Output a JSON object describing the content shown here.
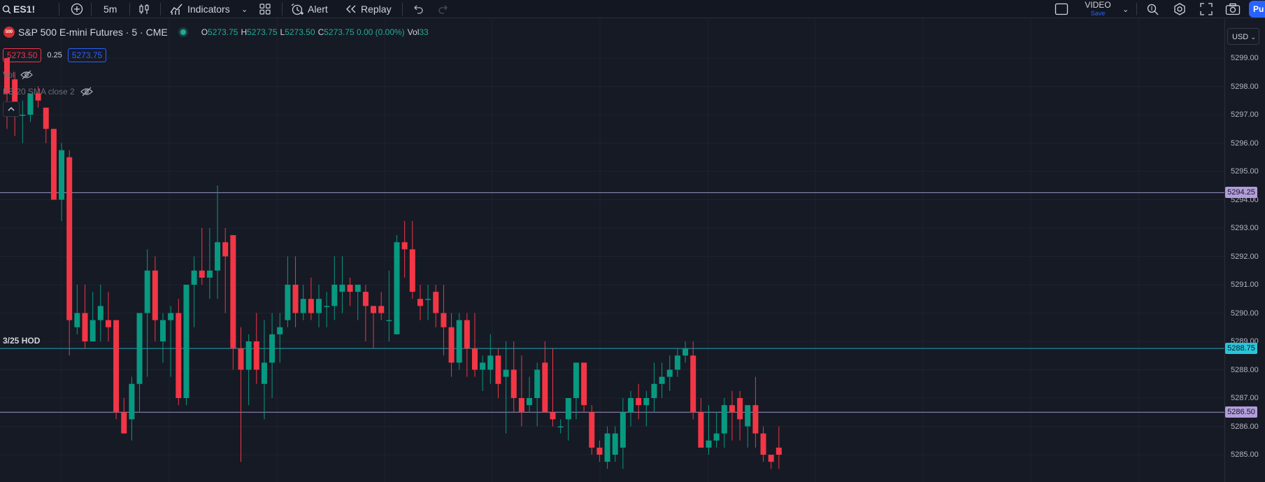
{
  "toolbar": {
    "symbol": "ES1!",
    "interval": "5m",
    "indicators_label": "Indicators",
    "alert_label": "Alert",
    "replay_label": "Replay",
    "video_label": "VIDEO",
    "video_sub": "Save",
    "publish_label": "Pu"
  },
  "legend": {
    "logo_text": "500",
    "title": "S&P 500 E-mini Futures · 5 · CME",
    "ohlc": [
      {
        "k": "O",
        "v": "5273.75"
      },
      {
        "k": "H",
        "v": "5273.75"
      },
      {
        "k": "L",
        "v": "5273.50"
      },
      {
        "k": "C",
        "v": "5273.75 0.00 (0.00%)"
      },
      {
        "k": "Vol",
        "v": "33"
      }
    ],
    "bid": "5273.50",
    "spread": "0.25",
    "ask": "5273.75",
    "indicators": [
      "Vol",
      "BB 20 SMA close 2"
    ]
  },
  "price_axis": {
    "currency": "USD",
    "ticks": [
      "5299.00",
      "5298.00",
      "5297.00",
      "5296.00",
      "5295.00",
      "5294.00",
      "5293.00",
      "5292.00",
      "5291.00",
      "5290.00",
      "5289.00",
      "5288.00",
      "5287.00",
      "5286.00",
      "5285.00"
    ]
  },
  "levels": [
    {
      "price": 5294.25,
      "label": "5294.25",
      "color": "#b39ddb",
      "line_color": "#9c94c8"
    },
    {
      "price": 5288.75,
      "label": "5288.75",
      "color": "#26c6da",
      "line_color": "#1fa8b8",
      "note": "3/25 HOD"
    },
    {
      "price": 5286.5,
      "label": "5286.50",
      "color": "#b39ddb",
      "line_color": "#9c94c8"
    }
  ],
  "colors": {
    "up": "#089981",
    "down": "#f23645",
    "background": "#161a25",
    "grid": "#1f2330"
  },
  "chart_data": {
    "type": "candlestick",
    "ylim": [
      5284.75,
      5300.25
    ],
    "candles": [
      {
        "o": 5299.0,
        "h": 5299.0,
        "l": 5296.5,
        "c": 5297.75
      },
      {
        "o": 5298.25,
        "h": 5298.5,
        "l": 5296.25,
        "c": 5297.0
      },
      {
        "o": 5297.0,
        "h": 5297.5,
        "l": 5296.0,
        "c": 5297.0
      },
      {
        "o": 5297.0,
        "h": 5297.75,
        "l": 5296.75,
        "c": 5297.75
      },
      {
        "o": 5297.75,
        "h": 5298.0,
        "l": 5297.25,
        "c": 5297.5
      },
      {
        "o": 5297.25,
        "h": 5297.25,
        "l": 5296.0,
        "c": 5296.5
      },
      {
        "o": 5296.5,
        "h": 5296.5,
        "l": 5294.0,
        "c": 5294.0
      },
      {
        "o": 5294.0,
        "h": 5296.0,
        "l": 5293.25,
        "c": 5295.75
      },
      {
        "o": 5295.5,
        "h": 5295.75,
        "l": 5288.5,
        "c": 5289.75
      },
      {
        "o": 5289.5,
        "h": 5291.0,
        "l": 5289.25,
        "c": 5290.0
      },
      {
        "o": 5290.0,
        "h": 5291.0,
        "l": 5288.75,
        "c": 5289.0
      },
      {
        "o": 5289.0,
        "h": 5290.75,
        "l": 5289.0,
        "c": 5289.75
      },
      {
        "o": 5289.75,
        "h": 5291.0,
        "l": 5289.0,
        "c": 5290.25
      },
      {
        "o": 5289.75,
        "h": 5290.75,
        "l": 5289.0,
        "c": 5289.5
      },
      {
        "o": 5289.75,
        "h": 5289.75,
        "l": 5286.25,
        "c": 5286.5
      },
      {
        "o": 5286.5,
        "h": 5287.0,
        "l": 5285.75,
        "c": 5285.75
      },
      {
        "o": 5286.25,
        "h": 5287.75,
        "l": 5285.5,
        "c": 5287.5
      },
      {
        "o": 5287.5,
        "h": 5290.0,
        "l": 5286.5,
        "c": 5290.0
      },
      {
        "o": 5290.0,
        "h": 5292.25,
        "l": 5287.75,
        "c": 5291.5
      },
      {
        "o": 5291.5,
        "h": 5292.0,
        "l": 5289.0,
        "c": 5289.75
      },
      {
        "o": 5289.0,
        "h": 5290.0,
        "l": 5288.25,
        "c": 5289.75
      },
      {
        "o": 5289.75,
        "h": 5290.25,
        "l": 5287.75,
        "c": 5290.0
      },
      {
        "o": 5290.0,
        "h": 5290.5,
        "l": 5286.75,
        "c": 5287.0
      },
      {
        "o": 5287.0,
        "h": 5291.0,
        "l": 5286.75,
        "c": 5291.0
      },
      {
        "o": 5291.0,
        "h": 5292.0,
        "l": 5289.5,
        "c": 5291.5
      },
      {
        "o": 5291.5,
        "h": 5293.0,
        "l": 5291.0,
        "c": 5291.25
      },
      {
        "o": 5291.25,
        "h": 5293.0,
        "l": 5290.5,
        "c": 5291.5
      },
      {
        "o": 5291.5,
        "h": 5294.5,
        "l": 5290.5,
        "c": 5292.5
      },
      {
        "o": 5292.5,
        "h": 5293.0,
        "l": 5290.0,
        "c": 5292.0
      },
      {
        "o": 5292.75,
        "h": 5292.75,
        "l": 5288.0,
        "c": 5288.75
      },
      {
        "o": 5288.75,
        "h": 5289.5,
        "l": 5284.75,
        "c": 5288.0
      },
      {
        "o": 5288.0,
        "h": 5289.25,
        "l": 5286.75,
        "c": 5289.0
      },
      {
        "o": 5289.0,
        "h": 5290.0,
        "l": 5287.5,
        "c": 5288.0
      },
      {
        "o": 5287.5,
        "h": 5289.75,
        "l": 5286.25,
        "c": 5288.25
      },
      {
        "o": 5288.25,
        "h": 5290.0,
        "l": 5287.0,
        "c": 5289.25
      },
      {
        "o": 5289.25,
        "h": 5290.0,
        "l": 5288.25,
        "c": 5289.5
      },
      {
        "o": 5289.75,
        "h": 5292.0,
        "l": 5289.5,
        "c": 5291.0
      },
      {
        "o": 5291.0,
        "h": 5292.0,
        "l": 5289.5,
        "c": 5290.0
      },
      {
        "o": 5290.0,
        "h": 5291.0,
        "l": 5289.75,
        "c": 5290.5
      },
      {
        "o": 5290.5,
        "h": 5291.25,
        "l": 5289.75,
        "c": 5290.0
      },
      {
        "o": 5290.0,
        "h": 5291.0,
        "l": 5289.5,
        "c": 5290.5
      },
      {
        "o": 5290.25,
        "h": 5290.75,
        "l": 5289.5,
        "c": 5290.25
      },
      {
        "o": 5290.25,
        "h": 5292.0,
        "l": 5289.75,
        "c": 5291.0
      },
      {
        "o": 5290.75,
        "h": 5292.0,
        "l": 5290.0,
        "c": 5291.0
      },
      {
        "o": 5291.0,
        "h": 5291.25,
        "l": 5290.25,
        "c": 5290.75
      },
      {
        "o": 5290.75,
        "h": 5291.0,
        "l": 5289.75,
        "c": 5291.0
      },
      {
        "o": 5290.75,
        "h": 5291.0,
        "l": 5289.0,
        "c": 5290.25
      },
      {
        "o": 5290.25,
        "h": 5290.25,
        "l": 5288.75,
        "c": 5290.0
      },
      {
        "o": 5290.25,
        "h": 5290.75,
        "l": 5289.75,
        "c": 5290.0
      },
      {
        "o": 5289.75,
        "h": 5291.5,
        "l": 5289.0,
        "c": 5289.75
      },
      {
        "o": 5289.25,
        "h": 5292.75,
        "l": 5289.25,
        "c": 5292.5
      },
      {
        "o": 5292.5,
        "h": 5293.25,
        "l": 5291.25,
        "c": 5292.25
      },
      {
        "o": 5292.25,
        "h": 5293.25,
        "l": 5290.5,
        "c": 5290.75
      },
      {
        "o": 5290.5,
        "h": 5291.0,
        "l": 5289.75,
        "c": 5290.25
      },
      {
        "o": 5290.5,
        "h": 5291.0,
        "l": 5289.75,
        "c": 5290.5
      },
      {
        "o": 5290.75,
        "h": 5291.0,
        "l": 5289.5,
        "c": 5290.0
      },
      {
        "o": 5290.0,
        "h": 5291.0,
        "l": 5288.5,
        "c": 5289.5
      },
      {
        "o": 5289.5,
        "h": 5290.0,
        "l": 5287.75,
        "c": 5288.25
      },
      {
        "o": 5288.25,
        "h": 5290.0,
        "l": 5288.0,
        "c": 5289.75
      },
      {
        "o": 5289.75,
        "h": 5290.0,
        "l": 5287.75,
        "c": 5288.75
      },
      {
        "o": 5288.75,
        "h": 5290.0,
        "l": 5287.75,
        "c": 5288.0
      },
      {
        "o": 5288.0,
        "h": 5288.5,
        "l": 5287.25,
        "c": 5288.25
      },
      {
        "o": 5288.0,
        "h": 5289.25,
        "l": 5287.5,
        "c": 5288.5
      },
      {
        "o": 5288.5,
        "h": 5288.75,
        "l": 5287.0,
        "c": 5287.5
      },
      {
        "o": 5287.75,
        "h": 5289.0,
        "l": 5285.75,
        "c": 5288.0
      },
      {
        "o": 5288.0,
        "h": 5289.0,
        "l": 5286.5,
        "c": 5287.0
      },
      {
        "o": 5287.0,
        "h": 5288.5,
        "l": 5286.0,
        "c": 5286.5
      },
      {
        "o": 5286.75,
        "h": 5287.75,
        "l": 5286.5,
        "c": 5287.0
      },
      {
        "o": 5287.0,
        "h": 5288.25,
        "l": 5286.0,
        "c": 5288.0
      },
      {
        "o": 5288.25,
        "h": 5289.0,
        "l": 5286.5,
        "c": 5286.5
      },
      {
        "o": 5286.5,
        "h": 5288.75,
        "l": 5286.0,
        "c": 5286.25
      },
      {
        "o": 5286.0,
        "h": 5286.25,
        "l": 5285.75,
        "c": 5286.0
      },
      {
        "o": 5286.25,
        "h": 5287.0,
        "l": 5285.5,
        "c": 5287.0
      },
      {
        "o": 5287.0,
        "h": 5288.25,
        "l": 5286.25,
        "c": 5288.25
      },
      {
        "o": 5288.25,
        "h": 5288.25,
        "l": 5286.5,
        "c": 5286.75
      },
      {
        "o": 5286.5,
        "h": 5286.75,
        "l": 5285.0,
        "c": 5285.25
      },
      {
        "o": 5285.25,
        "h": 5285.5,
        "l": 5284.75,
        "c": 5285.0
      },
      {
        "o": 5284.75,
        "h": 5286.0,
        "l": 5284.5,
        "c": 5285.75
      },
      {
        "o": 5285.0,
        "h": 5286.0,
        "l": 5284.75,
        "c": 5285.75
      },
      {
        "o": 5285.25,
        "h": 5287.0,
        "l": 5284.5,
        "c": 5286.5
      },
      {
        "o": 5286.5,
        "h": 5287.25,
        "l": 5286.0,
        "c": 5287.0
      },
      {
        "o": 5287.0,
        "h": 5287.5,
        "l": 5286.25,
        "c": 5286.75
      },
      {
        "o": 5286.75,
        "h": 5287.25,
        "l": 5286.0,
        "c": 5287.0
      },
      {
        "o": 5287.0,
        "h": 5288.25,
        "l": 5286.5,
        "c": 5287.5
      },
      {
        "o": 5287.5,
        "h": 5288.25,
        "l": 5287.0,
        "c": 5287.75
      },
      {
        "o": 5287.75,
        "h": 5288.5,
        "l": 5287.25,
        "c": 5288.0
      },
      {
        "o": 5288.0,
        "h": 5288.75,
        "l": 5287.75,
        "c": 5288.5
      },
      {
        "o": 5288.5,
        "h": 5289.0,
        "l": 5288.25,
        "c": 5288.75
      },
      {
        "o": 5288.5,
        "h": 5289.0,
        "l": 5286.25,
        "c": 5286.5
      },
      {
        "o": 5286.5,
        "h": 5287.0,
        "l": 5285.25,
        "c": 5285.25
      },
      {
        "o": 5285.25,
        "h": 5286.75,
        "l": 5285.0,
        "c": 5285.5
      },
      {
        "o": 5285.5,
        "h": 5286.5,
        "l": 5285.25,
        "c": 5285.75
      },
      {
        "o": 5285.75,
        "h": 5287.0,
        "l": 5285.25,
        "c": 5286.75
      },
      {
        "o": 5286.75,
        "h": 5287.25,
        "l": 5285.5,
        "c": 5286.5
      },
      {
        "o": 5287.0,
        "h": 5287.25,
        "l": 5285.5,
        "c": 5286.25
      },
      {
        "o": 5286.0,
        "h": 5286.75,
        "l": 5285.25,
        "c": 5286.75
      },
      {
        "o": 5286.75,
        "h": 5287.75,
        "l": 5285.25,
        "c": 5285.75
      },
      {
        "o": 5285.75,
        "h": 5286.0,
        "l": 5284.75,
        "c": 5285.0
      },
      {
        "o": 5285.0,
        "h": 5285.0,
        "l": 5284.5,
        "c": 5284.75
      },
      {
        "o": 5285.25,
        "h": 5286.0,
        "l": 5284.5,
        "c": 5285.0
      }
    ]
  }
}
